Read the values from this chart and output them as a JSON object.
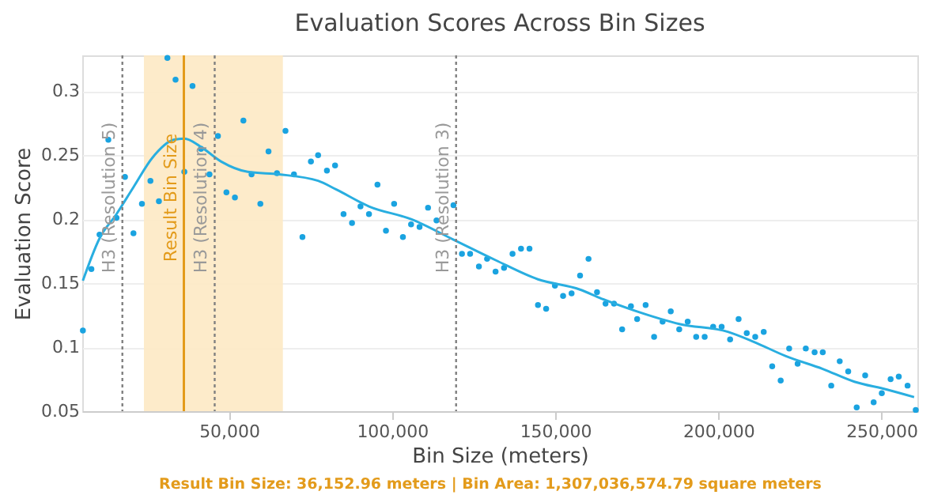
{
  "chart_data": {
    "type": "scatter",
    "title": "Evaluation Scores Across Bin Sizes",
    "xlabel": "Bin Size (meters)",
    "ylabel": "Evaluation Score",
    "xlim": [
      5000,
      261000
    ],
    "xticks": [
      {
        "value": 50000,
        "label": "50,000"
      },
      {
        "value": 100000,
        "label": "100,000"
      },
      {
        "value": 150000,
        "label": "150,000"
      },
      {
        "value": 200000,
        "label": "200,000"
      },
      {
        "value": 250000,
        "label": "250,000"
      }
    ],
    "ylim": [
      0.05,
      0.328
    ],
    "yticks": [
      0.05,
      0.1,
      0.15,
      0.2,
      0.25,
      0.3
    ],
    "grid": "y",
    "series": [
      {
        "color": "#1aa3e0",
        "marker": "circle",
        "x": [
          5200,
          7800,
          10300,
          13000,
          15500,
          18100,
          20700,
          23300,
          25900,
          28500,
          31100,
          33600,
          36300,
          38800,
          41400,
          44000,
          46600,
          49200,
          51800,
          54400,
          56900,
          59600,
          62100,
          64700,
          67300,
          69900,
          72500,
          75100,
          77300,
          80000,
          82500,
          85100,
          87700,
          90300,
          92900,
          95500,
          98100,
          100600,
          103300,
          105800,
          108400,
          111000,
          113600,
          118800,
          121400,
          123900,
          126600,
          129100,
          131700,
          134300,
          136900,
          139500,
          142100,
          144700,
          147200,
          149900,
          152400,
          155000,
          157600,
          160200,
          162800,
          165400,
          168000,
          170500,
          173200,
          175100,
          177700,
          180300,
          182900,
          185400,
          188000,
          190600,
          193200,
          195800,
          198400,
          201000,
          203600,
          206200,
          208700,
          211300,
          213900,
          216500,
          219100,
          221700,
          224300,
          226800,
          229500,
          232000,
          234600,
          237200,
          239800,
          242400,
          245000,
          247600,
          250100,
          252800,
          255300,
          258000,
          260500
        ],
        "values": [
          0.113,
          0.161,
          0.188,
          0.262,
          0.201,
          0.233,
          0.189,
          0.212,
          0.23,
          0.214,
          0.326,
          0.309,
          0.237,
          0.304,
          0.255,
          0.235,
          0.265,
          0.221,
          0.217,
          0.277,
          0.235,
          0.212,
          0.253,
          0.236,
          0.269,
          0.235,
          0.186,
          0.245,
          0.25,
          0.238,
          0.242,
          0.204,
          0.197,
          0.21,
          0.204,
          0.227,
          0.191,
          0.212,
          0.186,
          0.196,
          0.194,
          0.209,
          0.199,
          0.211,
          0.173,
          0.173,
          0.163,
          0.169,
          0.159,
          0.162,
          0.173,
          0.177,
          0.177,
          0.133,
          0.13,
          0.148,
          0.14,
          0.142,
          0.156,
          0.169,
          0.143,
          0.134,
          0.134,
          0.114,
          0.132,
          0.122,
          0.133,
          0.108,
          0.12,
          0.128,
          0.114,
          0.12,
          0.108,
          0.108,
          0.116,
          0.116,
          0.106,
          0.122,
          0.111,
          0.108,
          0.112,
          0.085,
          0.074,
          0.099,
          0.087,
          0.099,
          0.096,
          0.096,
          0.07,
          0.089,
          0.081,
          0.053,
          0.078,
          0.057,
          0.064,
          0.075,
          0.077,
          0.07,
          0.051
        ]
      },
      {
        "type": "line",
        "color": "#29aee0",
        "marker": "none",
        "line_style": "solid",
        "x": [
          5200,
          10300,
          15500,
          20700,
          26500,
          33000,
          36300,
          41100,
          47600,
          55700,
          65400,
          77300,
          83000,
          92900,
          105800,
          118800,
          131700,
          144700,
          157600,
          164100,
          173800,
          188300,
          202900,
          211000,
          220700,
          232000,
          241700,
          251500,
          260000
        ],
        "values": [
          0.152,
          0.185,
          0.204,
          0.225,
          0.248,
          0.262,
          0.263,
          0.257,
          0.245,
          0.237,
          0.235,
          0.23,
          0.223,
          0.21,
          0.2,
          0.184,
          0.168,
          0.153,
          0.145,
          0.138,
          0.129,
          0.118,
          0.112,
          0.104,
          0.093,
          0.083,
          0.073,
          0.067,
          0.061
        ]
      }
    ],
    "bands": [
      {
        "axis": "x",
        "from": 23900,
        "to": 66500,
        "color": "#fde9c4"
      }
    ],
    "ref_lines": [
      {
        "axis": "x",
        "value": 17300,
        "label": "H3 (Resolution 5)",
        "color": "#808080",
        "line_style": "dotted"
      },
      {
        "axis": "x",
        "value": 36152.96,
        "label": "Result Bin Size",
        "color": "#e39b1b",
        "line_style": "solid"
      },
      {
        "axis": "x",
        "value": 45600,
        "label": "H3 (Resolution 4)",
        "color": "#808080",
        "line_style": "dotted"
      },
      {
        "axis": "x",
        "value": 119600,
        "label": "H3 (Resolution 3)",
        "color": "#808080",
        "line_style": "dotted"
      }
    ],
    "annotations": [
      "Result Bin Size: 36,152.96 meters | Bin Area: 1,307,036,574.79 square meters"
    ]
  }
}
